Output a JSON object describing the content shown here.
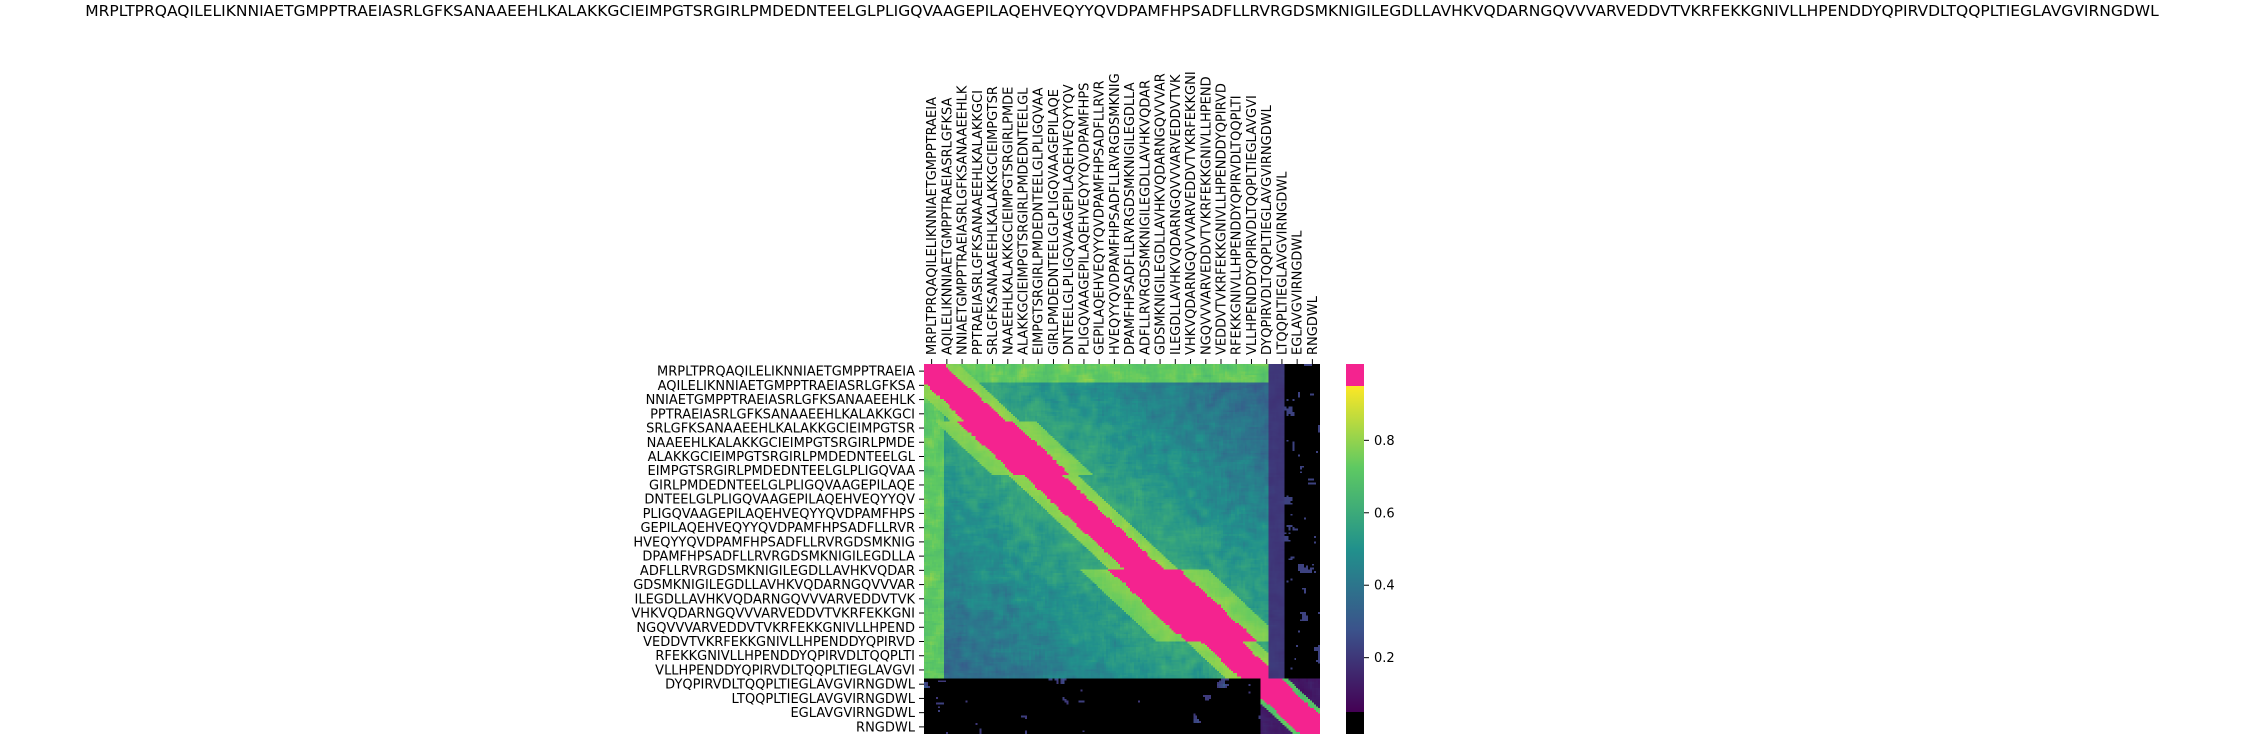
{
  "chart_data": {
    "type": "heatmap",
    "title": "MRPLTPRQAQILELIKNNIAETGMPPTRAEIASRLGFKSANAAEEHLKALAKKGCIEIMPGTSRGIRLPMDEDNTEELGLPLIGQVAAGEPILAQEHVEQYYQVDPAMFHPSADFLLRVRGDSMKNIGILEGDLLAVHKVQDARNGQVVVARVEDDVTVKRFEKKGNIVLLHPENDDYQPIRVDLTQQPLTIEGLAVGVIRNGDWL",
    "xlabel": "",
    "ylabel": "",
    "labels": [
      "MRPLTPRQAQILELIKNNIAETGMPPTRAEIA",
      "AQILELIKNNIAETGMPPTRAEIASRLGFKSA",
      "NNIAETGMPPTRAEIASRLGFKSANAAEEHLK",
      "PPTRAEIASRLGFKSANAAEEHLKALAKKGCI",
      "SRLGFKSANAAEEHLKALAKKGCIEIMPGTSR",
      "NAAEEHLKALAKKGCIEIMPGTSRGIRLPMDE",
      "ALAKKGCIEIMPGTSRGIRLPMDEDNTEELGL",
      "EIMPGTSRGIRLPMDEDNTEELGLPLIGQVAA",
      "GIRLPMDEDNTEELGLPLIGQVAAGEPILAQE",
      "DNTEELGLPLIGQVAAGEPILAQEHVEQYYQV",
      "PLIGQVAAGEPILAQEHVEQYYQVDPAMFHPS",
      "GEPILAQEHVEQYYQVDPAMFHPSADFLLRVR",
      "HVEQYYQVDPAMFHPSADFLLRVRGDSMKNIG",
      "DPAMFHPSADFLLRVRGDSMKNIGILEGDLLA",
      "ADFLLRVRGDSMKNIGILEGDLLAVHKVQDAR",
      "GDSMKNIGILEGDLLAVHKVQDARNGQVVVAR",
      "ILEGDLLAVHKVQDARNGQVVVARVEDDVTVK",
      "VHKVQDARNGQVVVARVEDDVTVKRFEKKGNI",
      "NGQVVVARVEDDVTVKRFEKKGNIVLLHPEND",
      "VEDDVTVKRFEKKGNIVLLHPENDDYQPIRVD",
      "RFEKKGNIVLLHPENDDYQPIRVDLTQQPLTI",
      "VLLHPENDDYQPIRVDLTQQPLTIEGLAVGVI",
      "DYQPIRVDLTQQPLTIEGLAVGVIRNGDWL",
      "LTQQPLTIEGLAVGVIRNGDWL",
      "EGLAVGVIRNGDWL",
      "RNGDWL"
    ],
    "colorbar": {
      "ticks": [
        0.2,
        0.4,
        0.6,
        0.8
      ],
      "range": [
        0.0,
        1.0
      ],
      "colors": {
        "below_min": "#000000",
        "viridis_low": "#440154",
        "viridis_q1": "#3b528b",
        "viridis_mid": "#21918c",
        "viridis_q3": "#5ec962",
        "viridis_high": "#fde725",
        "above_max": "#f4238f"
      }
    },
    "n_cells": 200,
    "structure_notes": {
      "diagonal_band_value": 0.97,
      "short_fragment_region_value": 0.02,
      "tail_columns_value": 0.15
    }
  }
}
